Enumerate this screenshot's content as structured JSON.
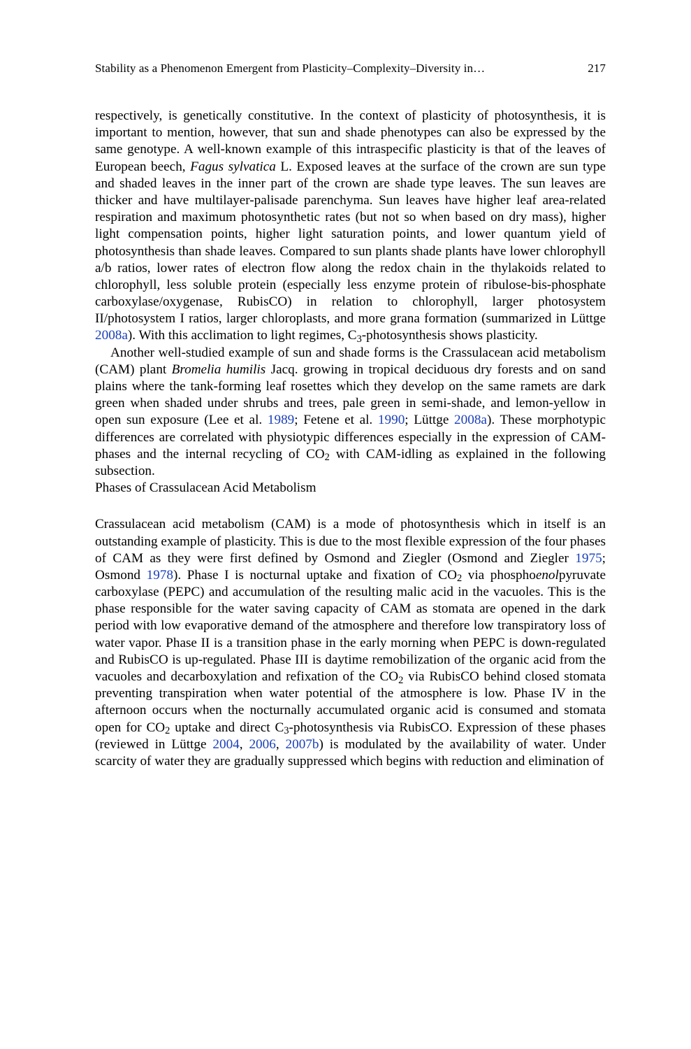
{
  "header": {
    "running_title": "Stability as a Phenomenon Emergent from Plasticity–Complexity–Diversity in…",
    "page_number": "217"
  },
  "paragraphs": {
    "p1_before_ref1": "respectively, is genetically constitutive. In the context of plasticity of photosynthesis, it is important to mention, however, that sun and shade phenotypes can also be expressed by the same genotype. A well-known example of this intraspecific plasticity is that of the leaves of European beech, ",
    "p1_italic1": "Fagus sylvatica",
    "p1_after_italic1": " L. Exposed leaves at the surface of the crown are sun type and shaded leaves in the inner part of the crown are shade type leaves. The sun leaves are thicker and have multilayer-palisade parenchyma. Sun leaves have higher leaf area-related respiration and maximum photosynthetic rates (but not so when based on dry mass), higher light compensation points, higher light saturation points, and lower quantum yield of photosynthesis than shade leaves. Compared to sun plants shade plants have lower chlorophyll a/b ratios, lower rates of electron flow along the redox chain in the thylakoids related to chlorophyll, less soluble protein (especially less enzyme protein of ribulose-bis-phosphate carboxylase/oxygenase, RubisCO) in relation to chlorophyll, larger photosystem II/photosystem I ratios, larger chloroplasts, and more grana formation (summarized in Lüttge ",
    "p1_ref1": "2008a",
    "p1_after_ref1": "). With this acclimation to light regimes, C",
    "p1_sub1": "3",
    "p1_tail": "-photosynthesis shows plasticity.",
    "p2_a": "Another well-studied example of sun and shade forms is the Crassulacean acid metabolism (CAM) plant ",
    "p2_italic1": "Bromelia humilis",
    "p2_b": " Jacq. growing in tropical deciduous dry forests and on sand plains where the tank-forming leaf rosettes which they develop on the same ramets are dark green when shaded under shrubs and trees, pale green in semi-shade, and lemon-yellow in open sun exposure (Lee et al. ",
    "p2_ref1": "1989",
    "p2_c": "; Fetene et al. ",
    "p2_ref2": "1990",
    "p2_d": "; Lüttge ",
    "p2_ref3": "2008a",
    "p2_e": "). These morphotypic differences are correlated with physiotypic differences especially in the expression of CAM-phases and the internal recycling of CO",
    "p2_sub1": "2",
    "p2_f": " with CAM-idling as explained in the following subsection.",
    "heading_phases": "Phases of Crassulacean Acid Metabolism",
    "p3_a": "Crassulacean acid metabolism (CAM) is a mode of photosynthesis which in itself is an outstanding example of plasticity. This is due to the most flexible expression of the four phases of CAM as they were first defined by Osmond and Ziegler (Osmond and Ziegler ",
    "p3_ref1": "1975",
    "p3_b": "; Osmond ",
    "p3_ref2": "1978",
    "p3_c": "). Phase I is nocturnal uptake and fixation of CO",
    "p3_sub1": "2",
    "p3_d": " via phospho",
    "p3_italic1": "enol",
    "p3_e": "pyruvate carboxylase (PEPC) and accumulation of the resulting malic acid in the vacuoles. This is the phase responsible for the water saving capacity of CAM as stomata are opened in the dark period with low evaporative demand of the atmosphere and therefore low transpiratory loss of water vapor. Phase II is a transition phase in the early morning when PEPC is down-regulated and RubisCO is up-regulated. Phase III is daytime remobilization of the organic acid from the vacuoles and decarboxylation and refixation of the CO",
    "p3_sub2": "2",
    "p3_f": " via RubisCO behind closed stomata preventing transpiration when water potential of the atmosphere is low. Phase IV in the afternoon occurs when the nocturnally accumulated organic acid is consumed and stomata open for CO",
    "p3_sub3": "2",
    "p3_g": " uptake and direct C",
    "p3_sub4": "3",
    "p3_h": "-photosynthesis via RubisCO. Expression of these phases (reviewed in Lüttge ",
    "p3_ref3": "2004",
    "p3_i": ", ",
    "p3_ref4": "2006",
    "p3_j": ", ",
    "p3_ref5": "2007b",
    "p3_k": ") is modulated by the availability of water. Under scarcity of water they are gradually suppressed which begins with reduction and elimination of"
  }
}
